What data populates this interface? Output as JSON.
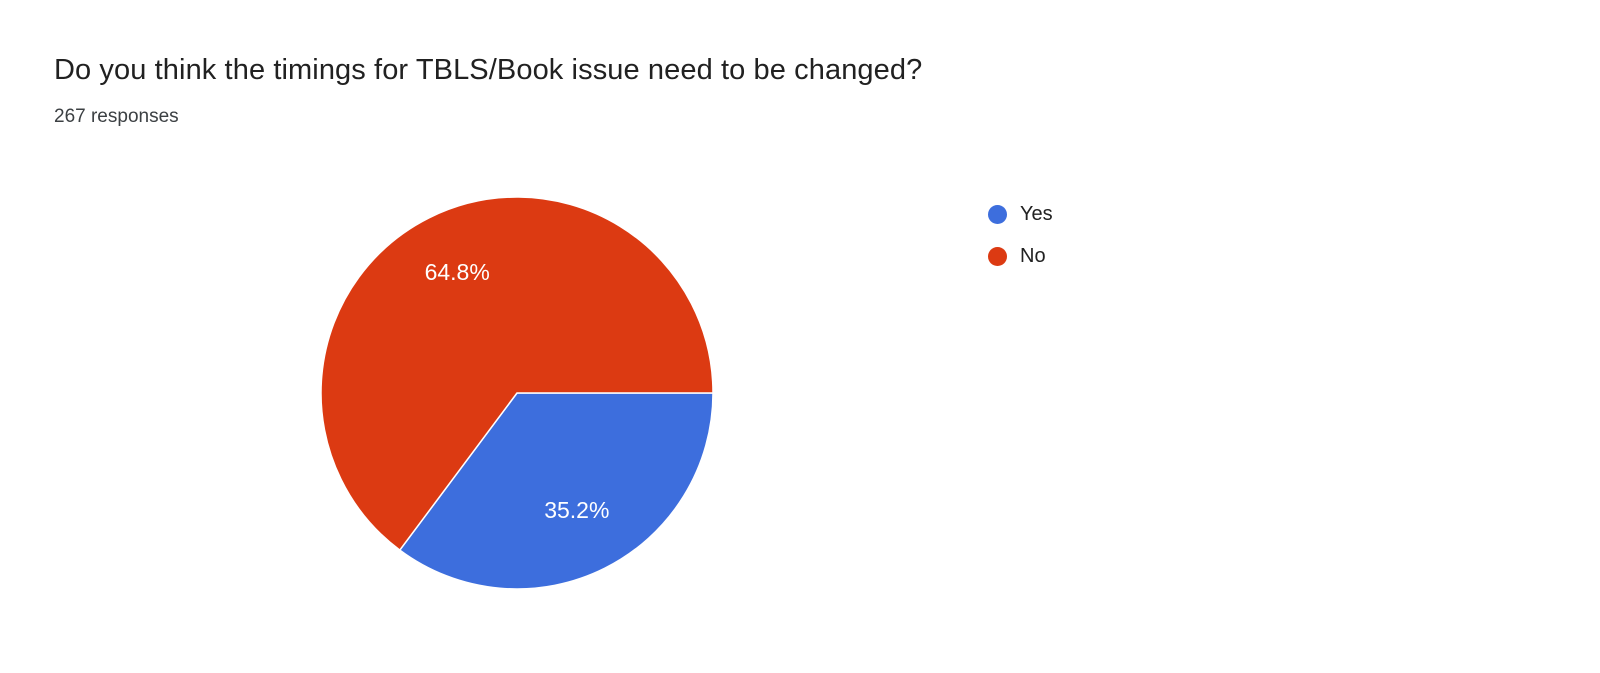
{
  "header": {
    "title": "Do you think the timings for TBLS/Book issue need to be changed?",
    "responses": "267 responses"
  },
  "chart_data": {
    "type": "pie",
    "title": "Do you think the timings for TBLS/Book issue need to be changed?",
    "responses_count": 267,
    "categories": [
      "Yes",
      "No"
    ],
    "values": [
      35.2,
      64.8
    ],
    "slices": [
      {
        "label": "Yes",
        "value": 35.2,
        "color": "#3d6edd"
      },
      {
        "label": "No",
        "value": 64.8,
        "color": "#dc3a12"
      }
    ],
    "value_unit": "percent",
    "slice_label_format": "one_decimal_percent",
    "slice_label_color": "#ffffff",
    "start_angle_deg_clockwise_from_top": 90,
    "legend_position": "right",
    "grid": false
  },
  "legend": {
    "items": [
      {
        "label": "Yes",
        "color": "#3d6edd"
      },
      {
        "label": "No",
        "color": "#dc3a12"
      }
    ]
  }
}
